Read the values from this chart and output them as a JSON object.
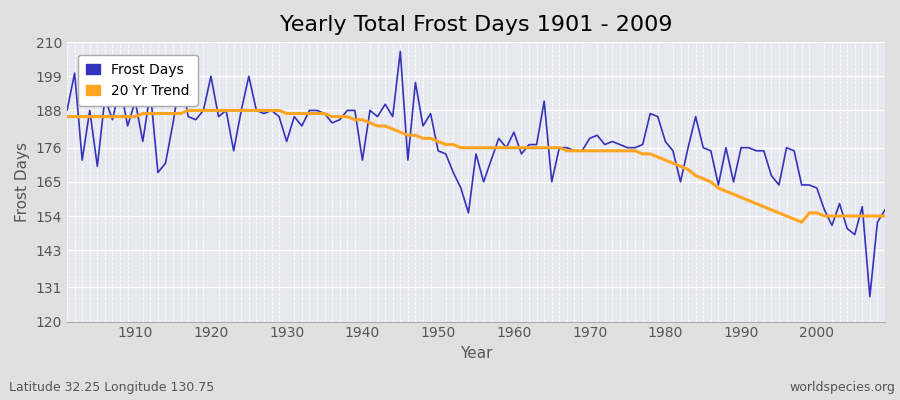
{
  "title": "Yearly Total Frost Days 1901 - 2009",
  "xlabel": "Year",
  "ylabel": "Frost Days",
  "subtitle": "Latitude 32.25 Longitude 130.75",
  "watermark": "worldspecies.org",
  "legend_frost": "Frost Days",
  "legend_trend": "20 Yr Trend",
  "years": [
    1901,
    1902,
    1903,
    1904,
    1905,
    1906,
    1907,
    1908,
    1909,
    1910,
    1911,
    1912,
    1913,
    1914,
    1915,
    1916,
    1917,
    1918,
    1919,
    1920,
    1921,
    1922,
    1923,
    1924,
    1925,
    1926,
    1927,
    1928,
    1929,
    1930,
    1931,
    1932,
    1933,
    1934,
    1935,
    1936,
    1937,
    1938,
    1939,
    1940,
    1941,
    1942,
    1943,
    1944,
    1945,
    1946,
    1947,
    1948,
    1949,
    1950,
    1951,
    1952,
    1953,
    1954,
    1955,
    1956,
    1957,
    1958,
    1959,
    1960,
    1961,
    1962,
    1963,
    1964,
    1965,
    1966,
    1967,
    1968,
    1969,
    1970,
    1971,
    1972,
    1973,
    1974,
    1975,
    1976,
    1977,
    1978,
    1979,
    1980,
    1981,
    1982,
    1983,
    1984,
    1985,
    1986,
    1987,
    1988,
    1989,
    1990,
    1991,
    1992,
    1993,
    1994,
    1995,
    1996,
    1997,
    1998,
    1999,
    2000,
    2001,
    2002,
    2003,
    2004,
    2005,
    2006,
    2007,
    2008,
    2009
  ],
  "frost_days": [
    188,
    200,
    172,
    188,
    170,
    192,
    185,
    196,
    183,
    191,
    178,
    194,
    168,
    171,
    184,
    199,
    186,
    185,
    188,
    199,
    186,
    188,
    175,
    188,
    199,
    188,
    187,
    188,
    186,
    178,
    186,
    183,
    188,
    188,
    187,
    184,
    185,
    188,
    188,
    172,
    188,
    186,
    190,
    186,
    207,
    172,
    197,
    183,
    187,
    175,
    174,
    168,
    163,
    155,
    174,
    165,
    172,
    179,
    176,
    181,
    174,
    177,
    177,
    191,
    165,
    176,
    176,
    175,
    175,
    179,
    180,
    177,
    178,
    177,
    176,
    176,
    177,
    187,
    186,
    178,
    175,
    165,
    176,
    186,
    176,
    175,
    164,
    176,
    165,
    176,
    176,
    175,
    175,
    167,
    164,
    176,
    175,
    164,
    164,
    163,
    156,
    151,
    158,
    150,
    148,
    157,
    128,
    152,
    156
  ],
  "trend_start_year": 1901,
  "trend_years": [
    1901,
    1902,
    1903,
    1904,
    1905,
    1906,
    1907,
    1908,
    1909,
    1910,
    1911,
    1912,
    1913,
    1914,
    1915,
    1916,
    1917,
    1918,
    1919,
    1920,
    1921,
    1922,
    1923,
    1924,
    1925,
    1926,
    1927,
    1928,
    1929,
    1930,
    1931,
    1932,
    1933,
    1934,
    1935,
    1936,
    1937,
    1938,
    1939,
    1940,
    1941,
    1942,
    1943,
    1944,
    1945,
    1946,
    1947,
    1948,
    1949,
    1950,
    1951,
    1952,
    1953,
    1954,
    1955,
    1956,
    1957,
    1958,
    1959,
    1960,
    1961,
    1962,
    1963,
    1964,
    1965,
    1966,
    1967,
    1968,
    1969,
    1970,
    1971,
    1972,
    1973,
    1974,
    1975,
    1976,
    1977,
    1978,
    1979,
    1980,
    1981,
    1982,
    1983,
    1984,
    1985,
    1986,
    1987,
    1988,
    1989,
    1990,
    1991,
    1992,
    1993,
    1994,
    1995,
    1996,
    1997,
    1998,
    1999,
    2000,
    2001,
    2002,
    2003,
    2004,
    2005,
    2006,
    2007,
    2008,
    2009
  ],
  "trend_values": [
    186,
    186,
    186,
    186,
    186,
    186,
    186,
    186,
    186,
    186,
    187,
    187,
    187,
    187,
    187,
    187,
    188,
    188,
    188,
    188,
    188,
    188,
    188,
    188,
    188,
    188,
    188,
    188,
    188,
    187,
    187,
    187,
    187,
    187,
    187,
    186,
    186,
    186,
    185,
    185,
    184,
    183,
    183,
    182,
    181,
    180,
    180,
    179,
    179,
    178,
    177,
    177,
    176,
    176,
    176,
    176,
    176,
    176,
    176,
    176,
    176,
    176,
    176,
    176,
    176,
    176,
    175,
    175,
    175,
    175,
    175,
    175,
    175,
    175,
    175,
    175,
    174,
    174,
    173,
    172,
    171,
    170,
    169,
    167,
    166,
    165,
    163,
    162,
    161,
    160,
    159,
    158,
    157,
    156,
    155,
    154,
    153,
    152,
    155,
    155,
    154,
    154,
    154,
    154,
    154,
    154,
    154,
    154,
    154
  ],
  "frost_color": "#3333bb",
  "trend_color": "#FFA520",
  "bg_color": "#e0e0e0",
  "plot_bg_color": "#e8e8f0",
  "grid_color": "#ffffff",
  "text_color": "#555555",
  "ylim": [
    120,
    210
  ],
  "yticks": [
    120,
    131,
    143,
    154,
    165,
    176,
    188,
    199,
    210
  ],
  "xtick_start": 1910,
  "xtick_step": 10,
  "xlim_min": 1901,
  "xlim_max": 2009,
  "title_fontsize": 16,
  "axis_label_fontsize": 11,
  "tick_fontsize": 10,
  "legend_fontsize": 10
}
